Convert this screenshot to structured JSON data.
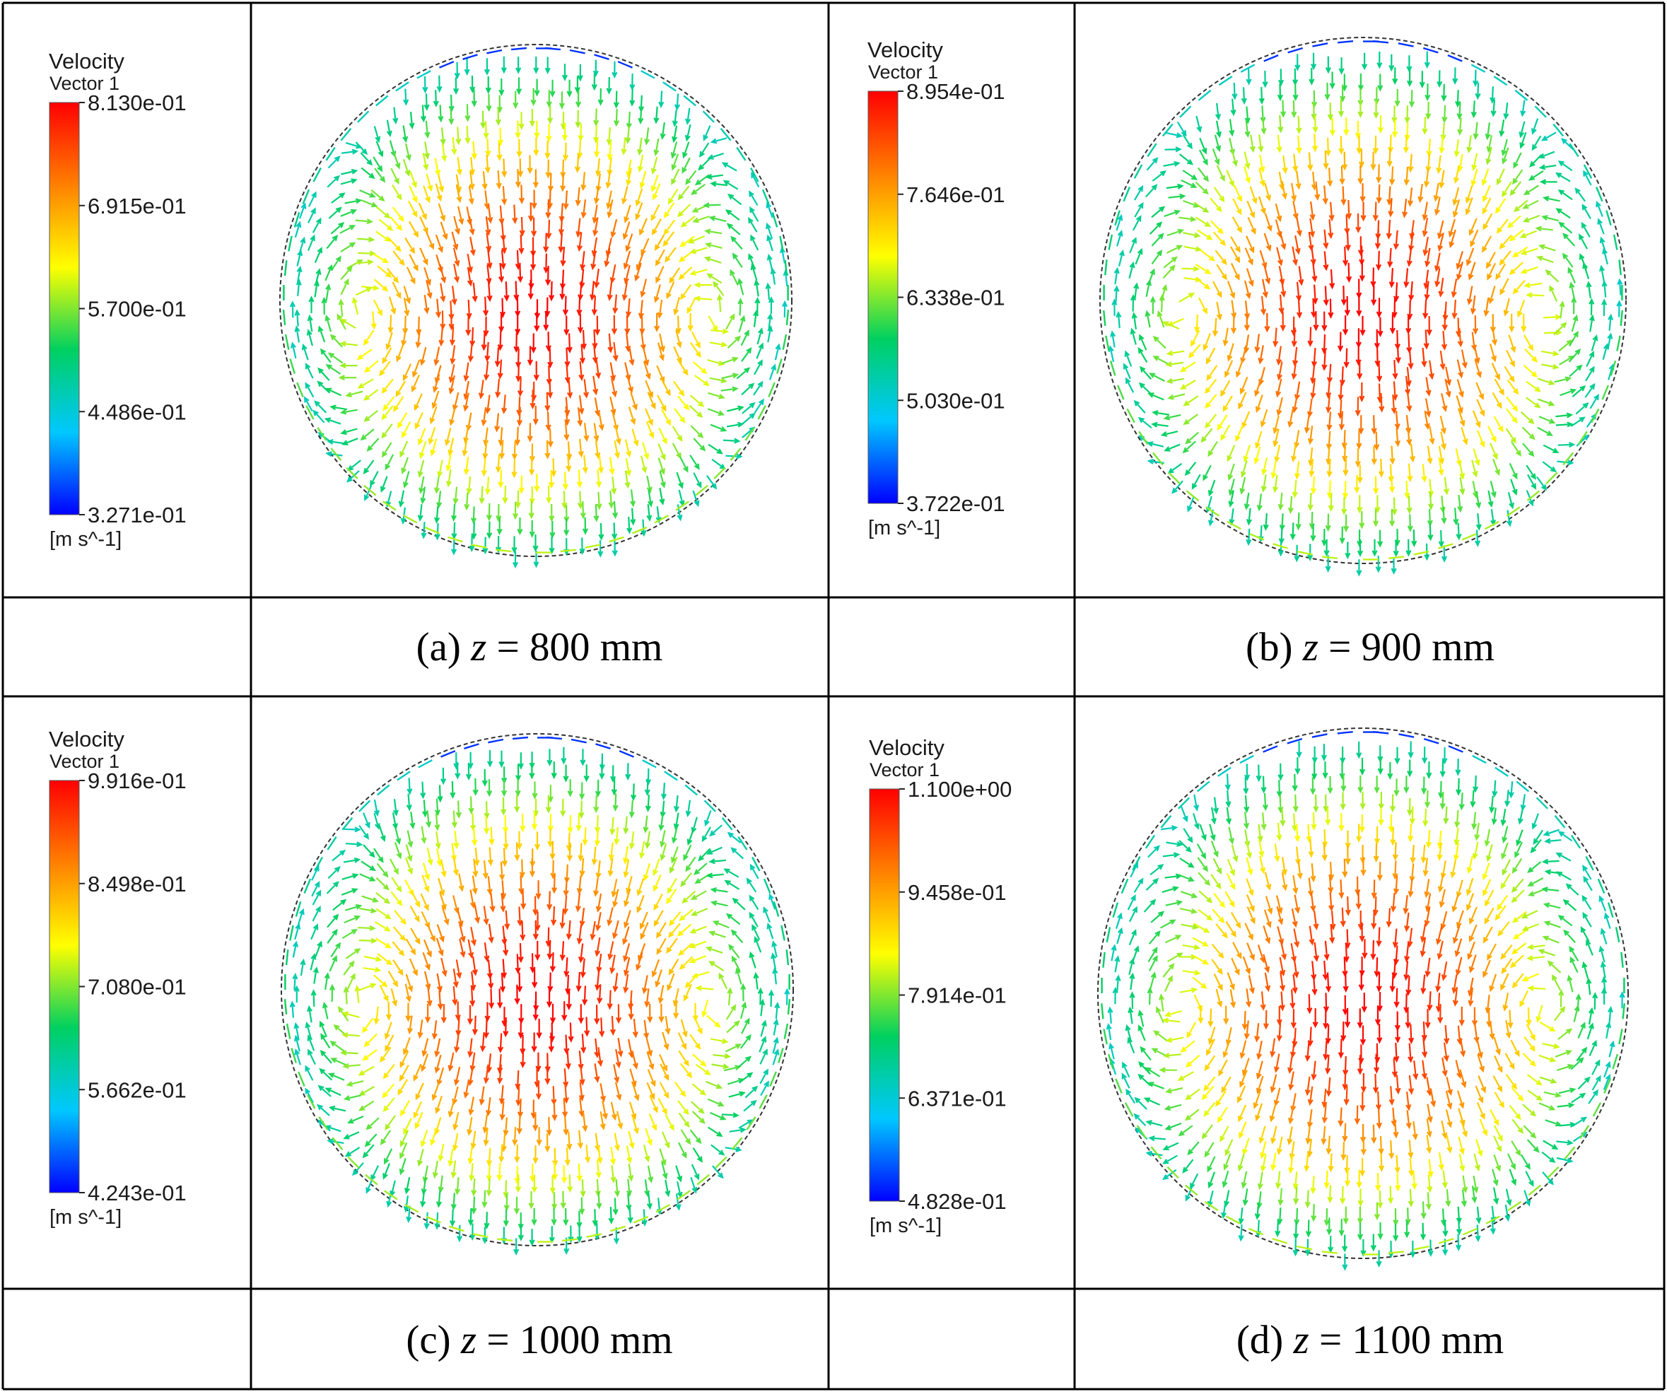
{
  "figure": {
    "panels": [
      {
        "id": "a",
        "caption": {
          "prefix": "(a) ",
          "variable": "z",
          "rest": " = 800 mm"
        },
        "legend": {
          "title": "Velocity",
          "subtitle": "Vector 1",
          "ticks": [
            "8.130e-01",
            "6.915e-01",
            "5.700e-01",
            "4.486e-01",
            "3.271e-01"
          ],
          "unit": "[m s^-1]",
          "min": 0.3271,
          "max": 0.813
        }
      },
      {
        "id": "b",
        "caption": {
          "prefix": "(b) ",
          "variable": "z",
          "rest": " = 900 mm"
        },
        "legend": {
          "title": "Velocity",
          "subtitle": "Vector 1",
          "ticks": [
            "8.954e-01",
            "7.646e-01",
            "6.338e-01",
            "5.030e-01",
            "3.722e-01"
          ],
          "unit": "[m s^-1]",
          "min": 0.3722,
          "max": 0.8954
        }
      },
      {
        "id": "c",
        "caption": {
          "prefix": "(c) ",
          "variable": "z",
          "rest": " = 1000 mm"
        },
        "legend": {
          "title": "Velocity",
          "subtitle": "Vector 1",
          "ticks": [
            "9.916e-01",
            "8.498e-01",
            "7.080e-01",
            "5.662e-01",
            "4.243e-01"
          ],
          "unit": "[m s^-1]",
          "min": 0.4243,
          "max": 0.9916
        }
      },
      {
        "id": "d",
        "caption": {
          "prefix": "(d) ",
          "variable": "z",
          "rest": " = 1100 mm"
        },
        "legend": {
          "title": "Velocity",
          "subtitle": "Vector 1",
          "ticks": [
            "1.100e+00",
            "9.458e-01",
            "7.914e-01",
            "6.371e-01",
            "4.828e-01"
          ],
          "unit": "[m s^-1]",
          "min": 0.4828,
          "max": 1.1
        }
      }
    ],
    "colors": {
      "gridline": "#000000",
      "circle": "#333333",
      "colormap": [
        "#0000ff",
        "#00c8ff",
        "#00d060",
        "#ffff00",
        "#ff8000",
        "#ff0000"
      ]
    }
  }
}
